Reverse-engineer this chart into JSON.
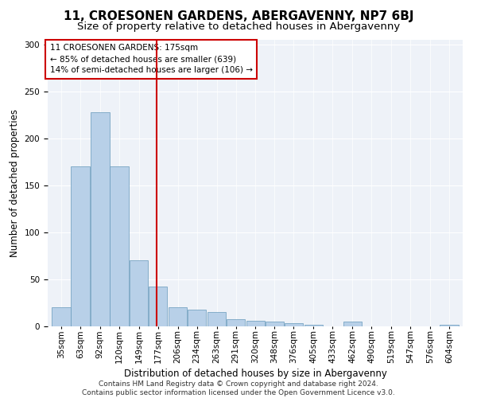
{
  "title": "11, CROESONEN GARDENS, ABERGAVENNY, NP7 6BJ",
  "subtitle": "Size of property relative to detached houses in Abergavenny",
  "xlabel": "Distribution of detached houses by size in Abergavenny",
  "ylabel": "Number of detached properties",
  "bins": [
    35,
    63,
    92,
    120,
    149,
    177,
    206,
    234,
    263,
    291,
    320,
    348,
    376,
    405,
    433,
    462,
    490,
    519,
    547,
    576,
    604
  ],
  "values": [
    20,
    170,
    228,
    170,
    70,
    42,
    20,
    18,
    15,
    8,
    6,
    5,
    3,
    2,
    0,
    5,
    0,
    0,
    0,
    0,
    2
  ],
  "marker_value": 175,
  "marker_label": "11 CROESONEN GARDENS: 175sqm",
  "annotation_line1": "← 85% of detached houses are smaller (639)",
  "annotation_line2": "14% of semi-detached houses are larger (106) →",
  "bar_color": "#b8d0e8",
  "bar_edge_color": "#6699bb",
  "marker_color": "#cc0000",
  "annotation_box_edge_color": "#cc0000",
  "ylim": [
    0,
    305
  ],
  "yticks": [
    0,
    50,
    100,
    150,
    200,
    250,
    300
  ],
  "footer_line1": "Contains HM Land Registry data © Crown copyright and database right 2024.",
  "footer_line2": "Contains public sector information licensed under the Open Government Licence v3.0.",
  "bg_color": "#eef2f8",
  "title_fontsize": 11,
  "subtitle_fontsize": 9.5,
  "axis_label_fontsize": 8.5,
  "tick_fontsize": 7.5,
  "annotation_fontsize": 7.5,
  "footer_fontsize": 6.5
}
